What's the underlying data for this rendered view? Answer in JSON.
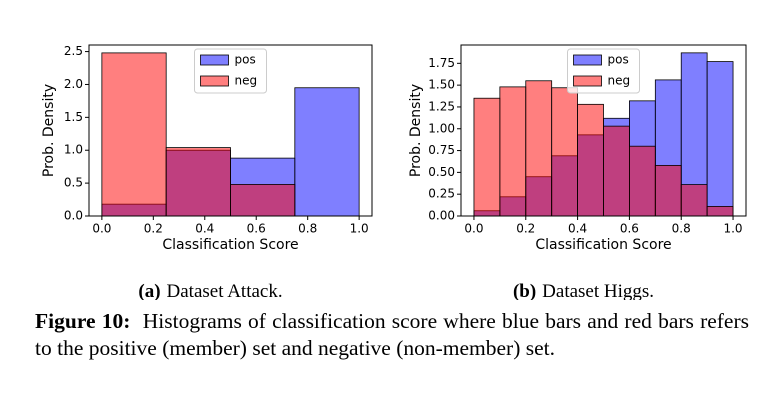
{
  "chart_data": [
    {
      "type": "histogram",
      "label": "(a)",
      "caption": "Dataset Attack.",
      "xlabel": "Classification Score",
      "ylabel": "Prob. Density",
      "bins": [
        0.0,
        0.25,
        0.5,
        0.75,
        1.0
      ],
      "series": [
        {
          "name": "pos",
          "color": "#0000ff",
          "values": [
            0.18,
            1.0,
            0.88,
            1.95
          ]
        },
        {
          "name": "neg",
          "color": "#ff0000",
          "values": [
            2.48,
            1.04,
            0.48,
            0
          ]
        }
      ],
      "xlim": [
        -0.05,
        1.05
      ],
      "ylim": [
        0,
        2.6
      ],
      "xticks": [
        {
          "value": 0,
          "label": "0.0"
        },
        0.2,
        0.4,
        0.6,
        0.8,
        {
          "value": 1,
          "label": "1.0"
        }
      ],
      "yticks": [
        {
          "value": 0,
          "label": "0.0"
        },
        0.5,
        {
          "value": 1,
          "label": "1.0"
        },
        1.5,
        {
          "value": 2,
          "label": "2.0"
        },
        2.5
      ],
      "legend": "upper center",
      "opacity": 0.5
    },
    {
      "type": "histogram",
      "label": "(b)",
      "caption": "Dataset Higgs.",
      "xlabel": "Classification Score",
      "ylabel": "Prob. Density",
      "bins": [
        0.0,
        0.1,
        0.2,
        0.3,
        0.4,
        0.5,
        0.6,
        0.7,
        0.8,
        0.9,
        1.0
      ],
      "series": [
        {
          "name": "pos",
          "color": "#0000ff",
          "values": [
            0.06,
            0.22,
            0.45,
            0.69,
            0.93,
            1.12,
            1.32,
            1.56,
            1.87,
            1.77
          ]
        },
        {
          "name": "neg",
          "color": "#ff0000",
          "values": [
            1.35,
            1.48,
            1.55,
            1.47,
            1.28,
            1.03,
            0.8,
            0.58,
            0.36,
            0.11
          ]
        }
      ],
      "xlim": [
        -0.05,
        1.05
      ],
      "ylim": [
        0,
        1.96
      ],
      "xticks": [
        {
          "value": 0,
          "label": "0.0"
        },
        0.2,
        0.4,
        0.6,
        0.8,
        {
          "value": 1,
          "label": "1.0"
        }
      ],
      "yticks": [
        {
          "value": 0,
          "label": "0.00"
        },
        0.25,
        {
          "value": 0.5,
          "label": "0.50"
        },
        0.75,
        {
          "value": 1,
          "label": "1.00"
        },
        1.25,
        {
          "value": 1.5,
          "label": "1.50"
        },
        1.75
      ],
      "legend": "upper center",
      "opacity": 0.5
    }
  ],
  "figure": {
    "label": "Figure 10:",
    "caption": "Histograms of classification score where blue bars and red bars refers to the positive (member) set and negative (non-member) set."
  }
}
